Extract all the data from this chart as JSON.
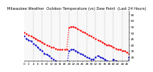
{
  "title": "Milwaukee Weather  Outdoor Temperature (vs) Dew Point  (Last 24 Hours)",
  "bg_color": "#ffffff",
  "plot_bg": "#f8f8f8",
  "temp_color": "#ff0000",
  "dew_color": "#0000cc",
  "grid_color": "#888888",
  "ylim": [
    27,
    68
  ],
  "xlim": [
    0,
    47
  ],
  "yticks": [
    30,
    35,
    40,
    45,
    50,
    55,
    60,
    65
  ],
  "temp_data": [
    0,
    50,
    1,
    49,
    2,
    48,
    3,
    47,
    4,
    46,
    5,
    45,
    6,
    44,
    7,
    43,
    8,
    42,
    9,
    41,
    10,
    40,
    11,
    39,
    12,
    38,
    13,
    38,
    14,
    37,
    15,
    36,
    16,
    36,
    17,
    36,
    18,
    36,
    19,
    36,
    20,
    54,
    21,
    55,
    22,
    55,
    23,
    54,
    24,
    53,
    25,
    52,
    26,
    51,
    27,
    50,
    28,
    49,
    29,
    48,
    30,
    47,
    31,
    46,
    32,
    45,
    33,
    44,
    34,
    43,
    35,
    42,
    36,
    41,
    37,
    40,
    38,
    40,
    39,
    39,
    40,
    38,
    41,
    37,
    42,
    36,
    43,
    36,
    44,
    35,
    45,
    35,
    46,
    34,
    47,
    33
  ],
  "dew_data": [
    0,
    47,
    1,
    45,
    2,
    44,
    3,
    43,
    4,
    41,
    5,
    40,
    6,
    38,
    7,
    36,
    8,
    35,
    9,
    33,
    10,
    32,
    11,
    31,
    12,
    29,
    13,
    28,
    14,
    27,
    15,
    26,
    16,
    25,
    17,
    24,
    18,
    23,
    19,
    22,
    20,
    35,
    21,
    36,
    22,
    36,
    23,
    35,
    24,
    34,
    25,
    33,
    26,
    32,
    27,
    31,
    28,
    30,
    29,
    29,
    30,
    28,
    31,
    28,
    32,
    30,
    33,
    31,
    34,
    30,
    35,
    29,
    36,
    28,
    37,
    27,
    38,
    26,
    39,
    25,
    40,
    28,
    41,
    27,
    42,
    26,
    43,
    25,
    44,
    24,
    45,
    23,
    46,
    22,
    47,
    30
  ],
  "vgrid_positions": [
    4,
    8,
    12,
    16,
    20,
    24,
    28,
    32,
    36,
    40,
    44
  ],
  "xtick_positions": [
    0,
    2,
    4,
    6,
    8,
    10,
    12,
    14,
    16,
    18,
    20,
    22,
    24,
    26,
    28,
    30,
    32,
    34,
    36,
    38,
    40,
    42,
    44,
    46
  ],
  "title_fontsize": 3.8,
  "tick_fontsize": 3.0,
  "linewidth": 0.9,
  "markersize": 1.5,
  "dot_markersize": 2.0
}
